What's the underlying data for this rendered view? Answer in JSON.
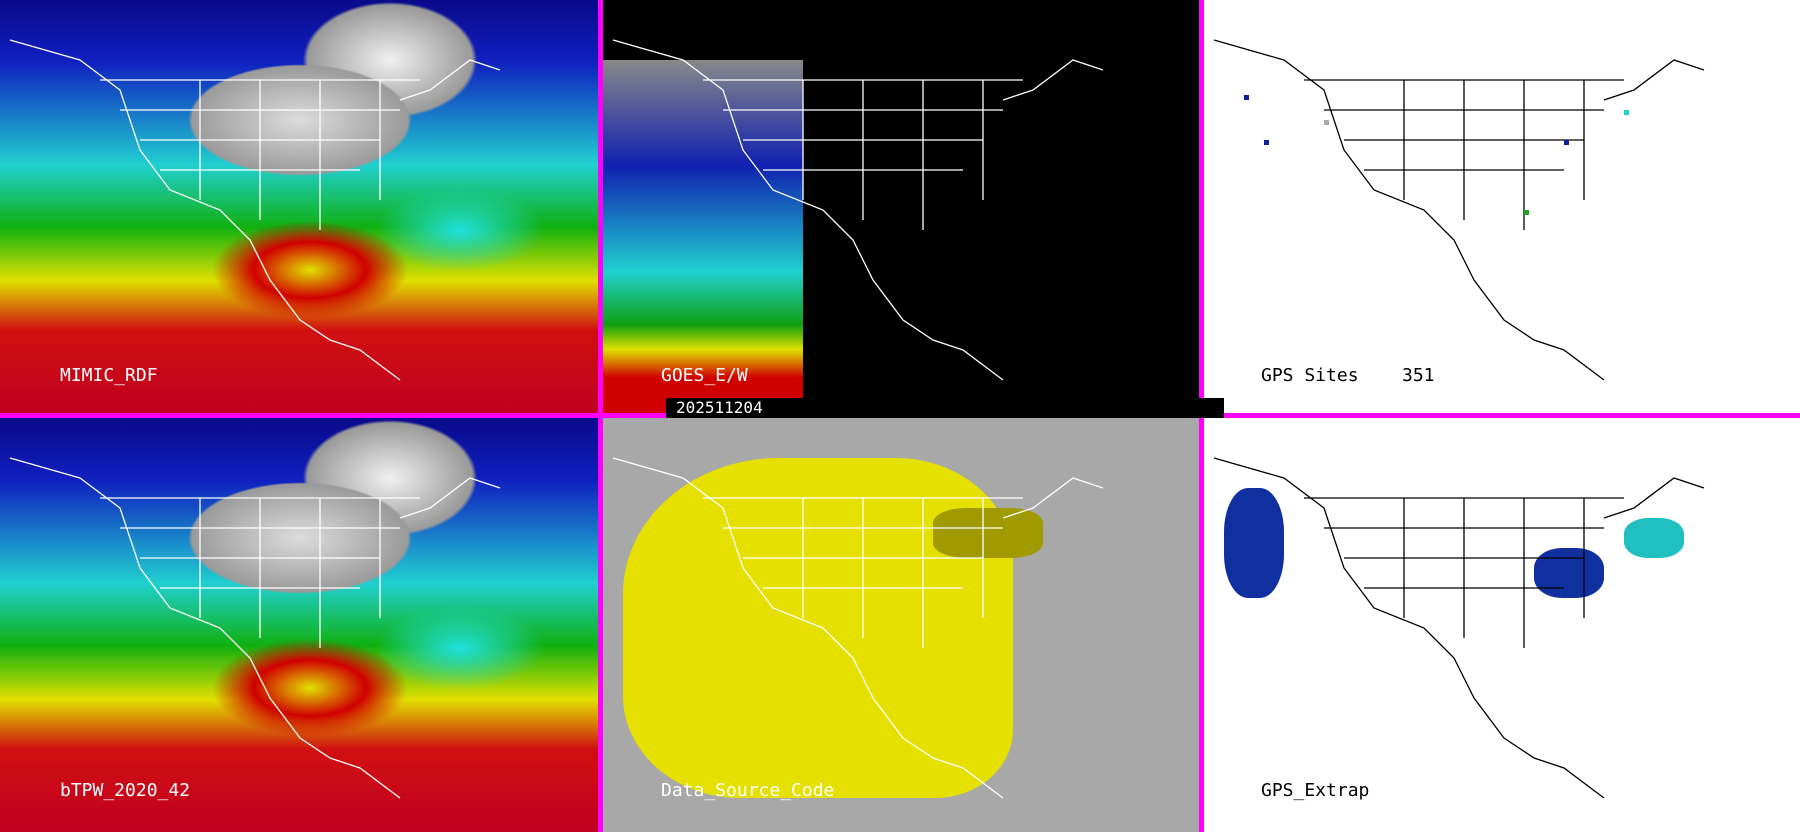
{
  "panels": [
    {
      "id": "mimic-rdf",
      "label": "MIMIC_RDF"
    },
    {
      "id": "goes-ew",
      "label": "GOES_E/W",
      "timestamp": "202511204"
    },
    {
      "id": "gps-sites",
      "label": "GPS Sites",
      "count": "351"
    },
    {
      "id": "btpw",
      "label": "bTPW_2020_42"
    },
    {
      "id": "data-source-code",
      "label": "Data_Source_Code"
    },
    {
      "id": "gps-extrap",
      "label": "GPS_Extrap"
    }
  ],
  "colors": {
    "border": "#ff00ff",
    "goes_bg": "#000000",
    "dsc_bg": "#a8a8a8",
    "dsc_field": "#e6e000"
  }
}
